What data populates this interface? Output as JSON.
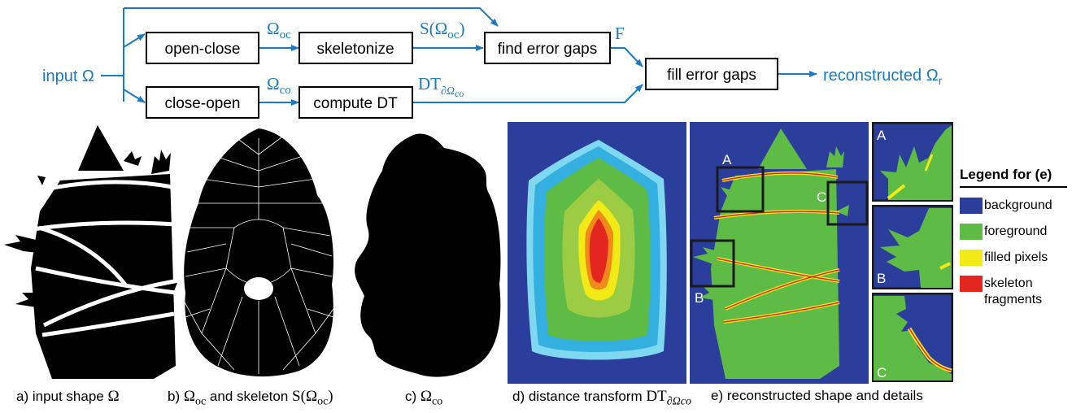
{
  "flow": {
    "input_label": "input Ω",
    "boxes": {
      "open_close": "open-close",
      "skeletonize": "skeletonize",
      "find_gaps": "find error gaps",
      "close_open": "close-open",
      "compute_dt": "compute DT",
      "fill_gaps": "fill error gaps"
    },
    "edges": {
      "omega_oc": "Ω",
      "omega_oc_sub": "oc",
      "s_omega_oc": "S(Ω",
      "s_omega_oc_sub": "oc",
      "s_close": ")",
      "f": "F",
      "omega_co": "Ω",
      "omega_co_sub": "co",
      "dt": "DT",
      "dt_sub": "∂Ω",
      "dt_sub2": "co"
    },
    "output_label": "reconstructed Ω",
    "output_sub": "r"
  },
  "panels": {
    "inset_labels": [
      "A",
      "B",
      "C"
    ],
    "zoom_labels": [
      "A",
      "B",
      "C"
    ]
  },
  "captions": {
    "a": "a) input shape ",
    "a_sym": "Ω",
    "b": "b) ",
    "b_sym1": "Ω",
    "b_sub1": "oc",
    "b_mid": " and skeleton ",
    "b_sym2": "S(Ω",
    "b_sub2": "oc",
    "b_end": ")",
    "c": "c) ",
    "c_sym": "Ω",
    "c_sub": "co",
    "d": "d) distance transform ",
    "d_sym": "DT",
    "d_sub": "∂Ωco",
    "e": "e) reconstructed shape and details"
  },
  "legend": {
    "title": "Legend for (e)",
    "items": [
      {
        "label": "background",
        "color": "#2c3e9c"
      },
      {
        "label": "foreground",
        "color": "#5dbb46"
      },
      {
        "label": "filled pixels",
        "color": "#f2ea17"
      },
      {
        "label": "skeleton fragments",
        "label_line1": "skeleton",
        "label_line2": "fragments",
        "color": "#e3261f"
      }
    ]
  },
  "colors": {
    "flow_blue": "#1a7ac2",
    "background": "#2c3e9c",
    "foreground": "#5dbb46",
    "filled": "#f2ea17",
    "skeleton": "#e3261f"
  }
}
